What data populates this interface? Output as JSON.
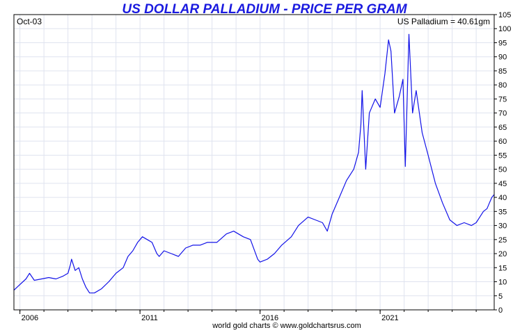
{
  "chart_data": {
    "type": "line",
    "title": "US DOLLAR PALLADIUM - PRICE PER GRAM",
    "start_label": "Oct-03",
    "current_label": "US Palladium = 40.61gm",
    "credit": "world gold charts © www.goldchartsrus.com",
    "xlim": [
      2005.75,
      2025.75
    ],
    "ylim": [
      0,
      105
    ],
    "x_ticks": [
      "2006",
      "2011",
      "2016",
      "2021"
    ],
    "y_ticks": [
      0,
      5,
      10,
      15,
      20,
      25,
      30,
      35,
      40,
      45,
      50,
      55,
      60,
      65,
      70,
      75,
      80,
      85,
      90,
      95,
      100,
      105
    ],
    "grid": true,
    "series": [
      {
        "color": "#1212e8",
        "x": [
          2005.75,
          2006.0,
          2006.25,
          2006.4,
          2006.6,
          2006.9,
          2007.2,
          2007.5,
          2007.8,
          2008.0,
          2008.1,
          2008.15,
          2008.3,
          2008.45,
          2008.6,
          2008.75,
          2008.9,
          2009.1,
          2009.4,
          2009.7,
          2010.0,
          2010.3,
          2010.5,
          2010.7,
          2010.9,
          2011.1,
          2011.3,
          2011.5,
          2011.7,
          2011.8,
          2012.0,
          2012.3,
          2012.6,
          2012.9,
          2013.2,
          2013.5,
          2013.8,
          2014.2,
          2014.6,
          2014.9,
          2015.3,
          2015.6,
          2015.9,
          2016.0,
          2016.3,
          2016.6,
          2016.9,
          2017.3,
          2017.6,
          2018.0,
          2018.3,
          2018.6,
          2018.8,
          2019.0,
          2019.3,
          2019.6,
          2019.9,
          2020.1,
          2020.2,
          2020.25,
          2020.4,
          2020.55,
          2020.8,
          2021.0,
          2021.2,
          2021.35,
          2021.45,
          2021.6,
          2021.8,
          2021.95,
          2022.05,
          2022.2,
          2022.35,
          2022.5,
          2022.75,
          2023.0,
          2023.3,
          2023.6,
          2023.9,
          2024.2,
          2024.5,
          2024.8,
          2025.0,
          2025.15,
          2025.3,
          2025.45,
          2025.55,
          2025.65,
          2025.75
        ],
        "values": [
          7,
          9,
          11,
          13,
          10.5,
          11,
          11.5,
          11,
          12,
          13,
          16,
          18,
          14,
          15,
          11,
          8,
          6,
          6,
          7.5,
          10,
          13,
          15,
          19,
          21,
          24,
          26,
          25,
          24,
          20,
          19,
          21,
          20,
          19,
          22,
          23,
          23,
          24,
          24,
          27,
          28,
          26,
          25,
          18,
          17,
          18,
          20,
          23,
          26,
          30,
          33,
          32,
          31,
          28,
          34,
          40,
          46,
          50,
          56,
          66,
          78,
          50,
          70,
          75,
          72,
          84,
          96,
          92,
          70,
          76,
          82,
          51,
          98,
          70,
          78,
          63,
          55,
          45,
          38,
          32,
          30,
          31,
          30,
          31,
          33,
          35,
          36,
          38,
          40,
          41
        ]
      }
    ]
  }
}
